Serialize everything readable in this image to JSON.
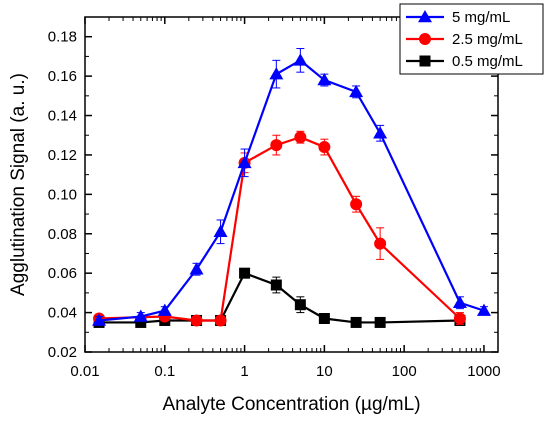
{
  "chart_data": {
    "type": "line",
    "title": "",
    "xlabel": "Analyte Concentration (µg/mL)",
    "ylabel": "Agglutination Signal (a. u.)",
    "x_scale": "log",
    "xlim": [
      0.01,
      1500
    ],
    "ylim": [
      0.02,
      0.19
    ],
    "x_ticks": [
      0.01,
      0.1,
      1,
      10,
      100,
      1000
    ],
    "x_tick_labels": [
      "0.01",
      "0.1",
      "1",
      "10",
      "100",
      "1000"
    ],
    "y_ticks": [
      0.02,
      0.04,
      0.06,
      0.08,
      0.1,
      0.12,
      0.14,
      0.16,
      0.18
    ],
    "y_tick_labels": [
      "0.02",
      "0.04",
      "0.06",
      "0.08",
      "0.10",
      "0.12",
      "0.14",
      "0.16",
      "0.18"
    ],
    "grid": false,
    "legend_position": "top-right",
    "series": [
      {
        "name": "5 mg/mL",
        "color": "#0000ff",
        "marker": "triangle",
        "points": [
          {
            "x": 0.015,
            "y": 0.036,
            "err": 0.002
          },
          {
            "x": 0.05,
            "y": 0.038,
            "err": 0.002
          },
          {
            "x": 0.1,
            "y": 0.041,
            "err": 0.002
          },
          {
            "x": 0.25,
            "y": 0.062,
            "err": 0.003
          },
          {
            "x": 0.5,
            "y": 0.081,
            "err": 0.006
          },
          {
            "x": 1,
            "y": 0.116,
            "err": 0.007
          },
          {
            "x": 2.5,
            "y": 0.161,
            "err": 0.007
          },
          {
            "x": 5,
            "y": 0.168,
            "err": 0.006
          },
          {
            "x": 10,
            "y": 0.158,
            "err": 0.003
          },
          {
            "x": 25,
            "y": 0.152,
            "err": 0.003
          },
          {
            "x": 50,
            "y": 0.131,
            "err": 0.004
          },
          {
            "x": 500,
            "y": 0.045,
            "err": 0.003
          },
          {
            "x": 1000,
            "y": 0.041,
            "err": 0.002
          }
        ]
      },
      {
        "name": "2.5 mg/mL",
        "color": "#ff0000",
        "marker": "circle",
        "points": [
          {
            "x": 0.015,
            "y": 0.037,
            "err": 0.002
          },
          {
            "x": 0.1,
            "y": 0.038,
            "err": 0.002
          },
          {
            "x": 0.25,
            "y": 0.036,
            "err": 0.001
          },
          {
            "x": 0.5,
            "y": 0.036,
            "err": 0.001
          },
          {
            "x": 1,
            "y": 0.116,
            "err": 0.005
          },
          {
            "x": 2.5,
            "y": 0.125,
            "err": 0.005
          },
          {
            "x": 5,
            "y": 0.129,
            "err": 0.003
          },
          {
            "x": 10,
            "y": 0.124,
            "err": 0.004
          },
          {
            "x": 25,
            "y": 0.095,
            "err": 0.004
          },
          {
            "x": 50,
            "y": 0.075,
            "err": 0.008
          },
          {
            "x": 500,
            "y": 0.037,
            "err": 0.003
          }
        ]
      },
      {
        "name": "0.5 mg/mL",
        "color": "#000000",
        "marker": "square",
        "points": [
          {
            "x": 0.015,
            "y": 0.035,
            "err": 0.001
          },
          {
            "x": 0.05,
            "y": 0.035,
            "err": 0.001
          },
          {
            "x": 0.1,
            "y": 0.036,
            "err": 0.001
          },
          {
            "x": 0.25,
            "y": 0.036,
            "err": 0.001
          },
          {
            "x": 0.5,
            "y": 0.036,
            "err": 0.001
          },
          {
            "x": 1,
            "y": 0.06,
            "err": 0.002
          },
          {
            "x": 2.5,
            "y": 0.054,
            "err": 0.004
          },
          {
            "x": 5,
            "y": 0.044,
            "err": 0.004
          },
          {
            "x": 10,
            "y": 0.037,
            "err": 0.002
          },
          {
            "x": 25,
            "y": 0.035,
            "err": 0.001
          },
          {
            "x": 50,
            "y": 0.035,
            "err": 0.001
          },
          {
            "x": 500,
            "y": 0.036,
            "err": 0.001
          }
        ]
      }
    ]
  }
}
